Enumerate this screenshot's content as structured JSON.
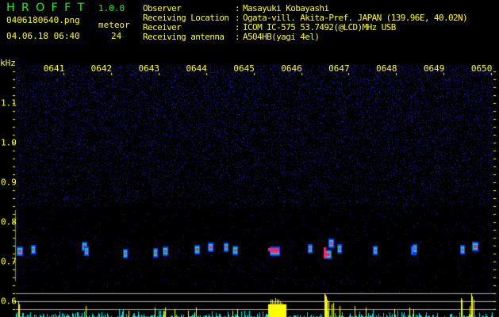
{
  "app": {
    "title": "H R O F F T",
    "version": "1.0.0"
  },
  "file": {
    "name": "0406180640.png",
    "datetime": "04.06.18 06:40"
  },
  "meteor": {
    "label": "meteor",
    "count": "24"
  },
  "info": [
    {
      "label": "Observer",
      "value": "Masayuki Kobayashi"
    },
    {
      "label": "Receiving Location",
      "value": "Ogata-vill. Akita-Pref. JAPAN (139.96E, 40.02N)"
    },
    {
      "label": "Receiver",
      "value": "ICOM IC-575 53.7492(@LCD)MHz USB"
    },
    {
      "label": "Receiving antenna",
      "value": "A504HB(yagi 4el)"
    }
  ],
  "separator": ":",
  "spectrogram": {
    "y_unit": "kHz",
    "y_ticks": [
      "1.1",
      "1.0",
      "0.9",
      "0.8",
      "0.7",
      "0.6"
    ],
    "time_ticks": [
      "0641",
      "0642",
      "0643",
      "0644",
      "0645",
      "0646",
      "0647",
      "0648",
      "0649",
      "0650"
    ],
    "colors": {
      "label": "#ffff00",
      "title": "#22ee22",
      "noise": "#1a1a9a",
      "histogram_meteor": "#ffff00",
      "histogram_noise": "#00e5e5",
      "echo_core": "#ff2266"
    }
  }
}
